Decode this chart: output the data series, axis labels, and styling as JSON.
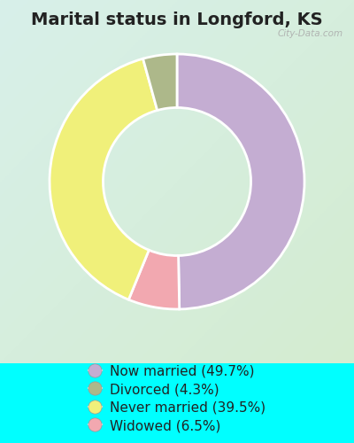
{
  "title": "Marital status in Longford, KS",
  "slices_ordered": [
    49.7,
    6.5,
    39.5,
    4.3
  ],
  "colors_ordered": [
    "#c4add2",
    "#f2a8b0",
    "#f0f07a",
    "#adb88a"
  ],
  "legend_labels": [
    "Now married (49.7%)",
    "Divorced (4.3%)",
    "Never married (39.5%)",
    "Widowed (6.5%)"
  ],
  "legend_colors": [
    "#c4add2",
    "#adb88a",
    "#f0f07a",
    "#f2a8b0"
  ],
  "outer_bg": "#00FFFF",
  "chart_bg_tl": "#d8f0ea",
  "chart_bg_br": "#d4ecd0",
  "donut_width": 0.42,
  "startangle": 90,
  "title_fontsize": 14,
  "legend_fontsize": 11,
  "watermark": "City-Data.com"
}
